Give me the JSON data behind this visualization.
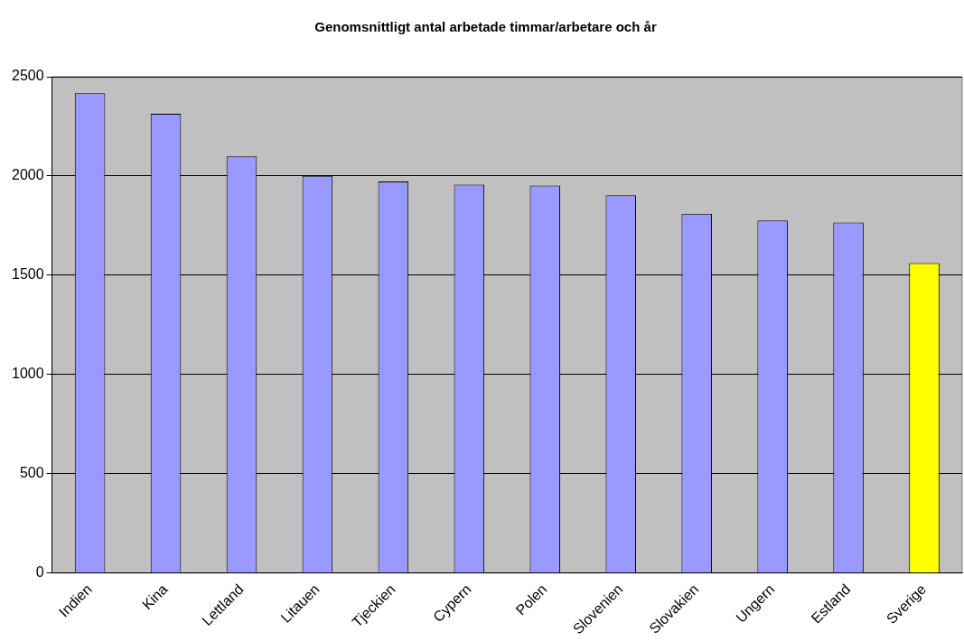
{
  "chart_data": {
    "type": "bar",
    "title": "Genomsnittligt antal arbetade timmar/arbetare och år",
    "categories": [
      "Indien",
      "Kina",
      "Lettland",
      "Litauen",
      "Tjeckien",
      "Cypern",
      "Polen",
      "Slovenien",
      "Slovakien",
      "Ungern",
      "Estland",
      "Sverige"
    ],
    "values": [
      2417,
      2314,
      2099,
      2001,
      1972,
      1957,
      1952,
      1903,
      1810,
      1776,
      1766,
      1561
    ],
    "colors": [
      "#9999ff",
      "#9999ff",
      "#9999ff",
      "#9999ff",
      "#9999ff",
      "#9999ff",
      "#9999ff",
      "#9999ff",
      "#9999ff",
      "#9999ff",
      "#9999ff",
      "#ffff00"
    ],
    "ylim": [
      0,
      2500
    ],
    "yticks": [
      0,
      500,
      1000,
      1500,
      2000,
      2500
    ],
    "grid": "y",
    "legend": false
  }
}
